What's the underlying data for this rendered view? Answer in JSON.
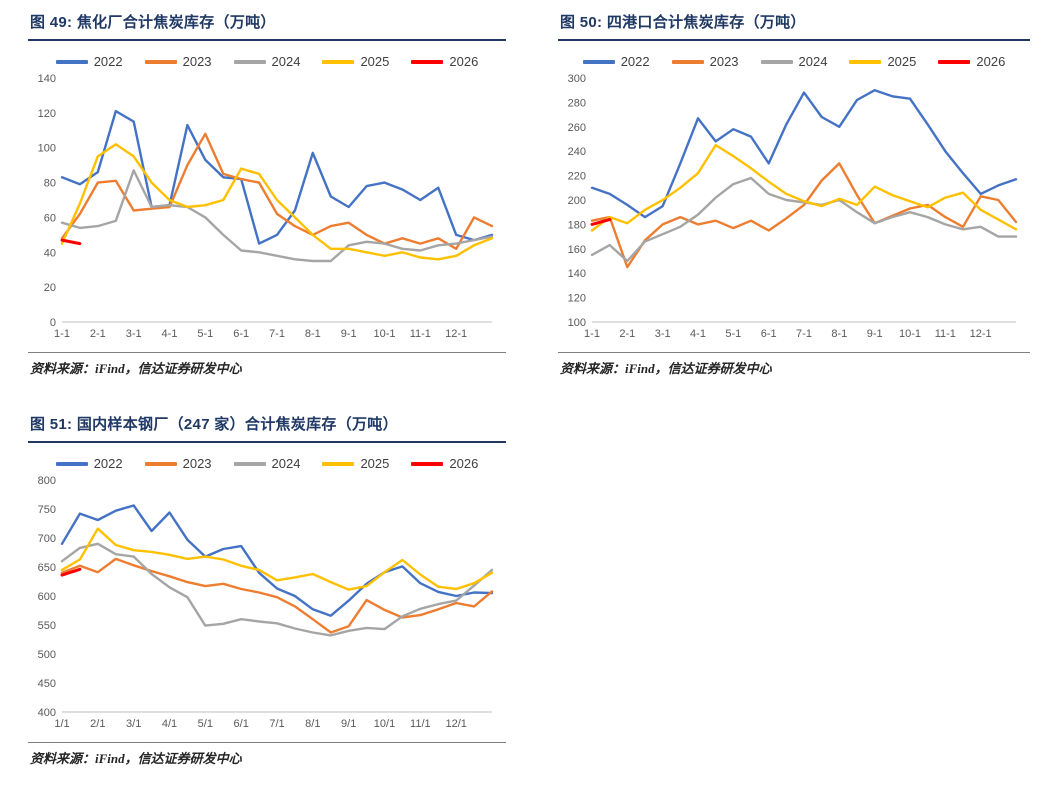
{
  "source_label": "资料来源：iFind，信达证券研发中心",
  "colors": {
    "title": "#1F3864",
    "axis_text": "#595959",
    "axis_line": "#BFBFBF",
    "source_divider": "#808080",
    "series": {
      "2022": "#4472C4",
      "2023": "#ED7D31",
      "2024": "#A5A5A5",
      "2025": "#FFC000",
      "2026": "#FF0000"
    }
  },
  "chart_data": [
    {
      "type": "line",
      "title": "图 49: 焦化厂合计焦炭库存（万吨）",
      "xlabel": "",
      "ylabel": "万吨",
      "ylim": [
        0,
        140
      ],
      "ytick_step": 20,
      "grid": false,
      "legend_position": "top",
      "x_labels": [
        "1-1",
        "2-1",
        "3-1",
        "4-1",
        "5-1",
        "6-1",
        "7-1",
        "8-1",
        "9-1",
        "10-1",
        "11-1",
        "12-1"
      ],
      "points_per_year": 25,
      "series": [
        {
          "name": "2022",
          "values": [
            83,
            79,
            86,
            121,
            115,
            66,
            67,
            113,
            93,
            83,
            82,
            45,
            50,
            64,
            97,
            72,
            66,
            78,
            80,
            76,
            70,
            77,
            50,
            47,
            50
          ]
        },
        {
          "name": "2023",
          "values": [
            48,
            62,
            80,
            81,
            64,
            65,
            66,
            90,
            108,
            85,
            82,
            80,
            62,
            55,
            50,
            55,
            57,
            50,
            45,
            48,
            45,
            48,
            42,
            60,
            55
          ]
        },
        {
          "name": "2024",
          "values": [
            57,
            54,
            55,
            58,
            87,
            66,
            67,
            66,
            60,
            50,
            41,
            40,
            38,
            36,
            35,
            35,
            44,
            46,
            45,
            42,
            41,
            44,
            45,
            47,
            49
          ]
        },
        {
          "name": "2025",
          "values": [
            45,
            68,
            95,
            102,
            95,
            80,
            70,
            66,
            67,
            70,
            88,
            85,
            70,
            60,
            50,
            42,
            42,
            40,
            38,
            40,
            37,
            36,
            38,
            44,
            48
          ]
        },
        {
          "name": "2026",
          "values": [
            47,
            45
          ]
        }
      ]
    },
    {
      "type": "line",
      "title": "图 50: 四港口合计焦炭库存（万吨）",
      "xlabel": "",
      "ylabel": "万吨",
      "ylim": [
        100,
        300
      ],
      "ytick_step": 20,
      "grid": false,
      "legend_position": "top",
      "x_labels": [
        "1-1",
        "2-1",
        "3-1",
        "4-1",
        "5-1",
        "6-1",
        "7-1",
        "8-1",
        "9-1",
        "10-1",
        "11-1",
        "12-1"
      ],
      "points_per_year": 25,
      "series": [
        {
          "name": "2022",
          "values": [
            210,
            205,
            196,
            186,
            195,
            230,
            267,
            248,
            258,
            252,
            230,
            262,
            288,
            268,
            260,
            282,
            290,
            285,
            283,
            262,
            240,
            222,
            205,
            212,
            217
          ]
        },
        {
          "name": "2023",
          "values": [
            183,
            186,
            145,
            167,
            180,
            186,
            180,
            183,
            177,
            183,
            175,
            185,
            196,
            216,
            230,
            204,
            181,
            187,
            193,
            196,
            186,
            178,
            203,
            200,
            182
          ]
        },
        {
          "name": "2024",
          "values": [
            155,
            163,
            150,
            166,
            172,
            178,
            188,
            202,
            213,
            218,
            205,
            200,
            198,
            196,
            200,
            190,
            181,
            186,
            190,
            186,
            180,
            176,
            178,
            170,
            170
          ]
        },
        {
          "name": "2025",
          "values": [
            175,
            186,
            181,
            192,
            200,
            210,
            222,
            245,
            236,
            226,
            215,
            205,
            199,
            195,
            201,
            196,
            211,
            204,
            199,
            194,
            202,
            206,
            192,
            184,
            176
          ]
        },
        {
          "name": "2026",
          "values": [
            180,
            184
          ]
        }
      ]
    },
    {
      "type": "line",
      "title": "图 51: 国内样本钢厂（247 家）合计焦炭库存（万吨）",
      "xlabel": "",
      "ylabel": "万吨",
      "ylim": [
        400,
        800
      ],
      "ytick_step": 50,
      "grid": false,
      "legend_position": "top",
      "x_labels": [
        "1/1",
        "2/1",
        "3/1",
        "4/1",
        "5/1",
        "6/1",
        "7/1",
        "8/1",
        "9/1",
        "10/1",
        "11/1",
        "12/1"
      ],
      "points_per_year": 25,
      "series": [
        {
          "name": "2022",
          "values": [
            690,
            742,
            731,
            747,
            756,
            712,
            744,
            697,
            668,
            681,
            686,
            640,
            613,
            600,
            577,
            566,
            592,
            621,
            641,
            651,
            622,
            607,
            600,
            606,
            605
          ]
        },
        {
          "name": "2023",
          "values": [
            640,
            652,
            641,
            664,
            653,
            643,
            634,
            624,
            617,
            621,
            612,
            606,
            598,
            582,
            560,
            537,
            548,
            593,
            576,
            563,
            567,
            577,
            588,
            582,
            608
          ]
        },
        {
          "name": "2024",
          "values": [
            660,
            683,
            690,
            672,
            668,
            638,
            615,
            598,
            549,
            552,
            560,
            556,
            553,
            544,
            537,
            532,
            540,
            545,
            543,
            565,
            578,
            586,
            592,
            618,
            645
          ]
        },
        {
          "name": "2025",
          "values": [
            645,
            663,
            716,
            688,
            679,
            676,
            671,
            664,
            668,
            663,
            652,
            645,
            627,
            632,
            638,
            624,
            611,
            617,
            641,
            662,
            637,
            616,
            612,
            622,
            640
          ]
        },
        {
          "name": "2026",
          "values": [
            636,
            646
          ]
        }
      ]
    }
  ]
}
